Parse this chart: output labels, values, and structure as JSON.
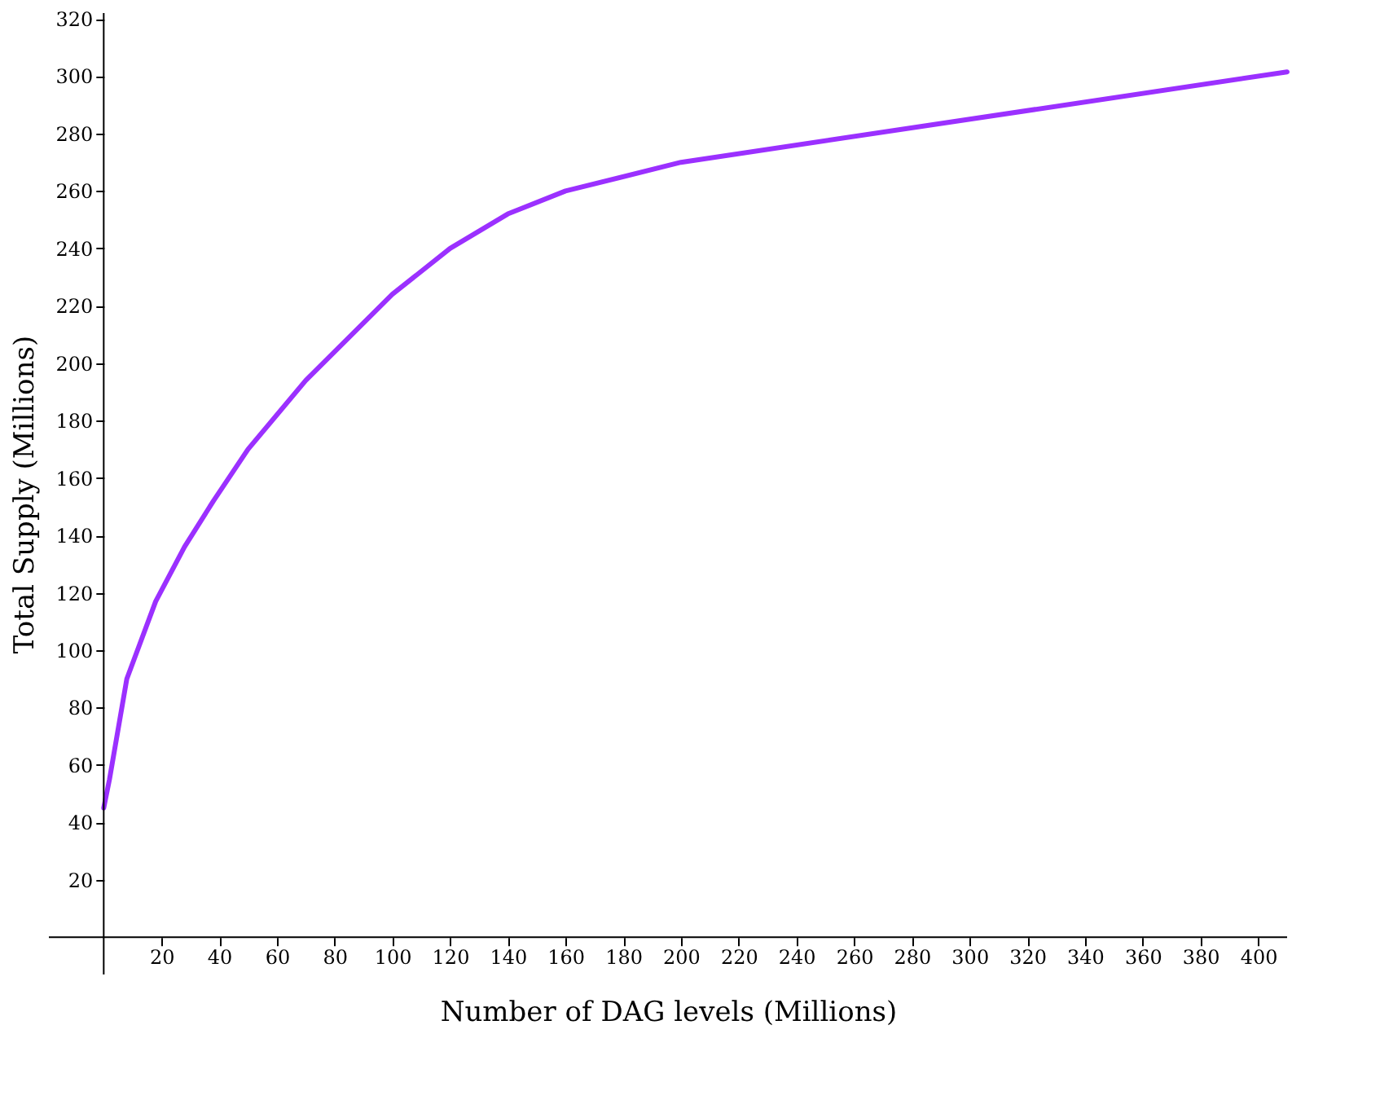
{
  "chart_data": {
    "type": "line",
    "xlabel": "Number of DAG levels (Millions)",
    "ylabel": "Total Supply (Millions)",
    "x": [
      0,
      2,
      8,
      18,
      28,
      38,
      50,
      70,
      100,
      120,
      140,
      160,
      200,
      410
    ],
    "series": [
      {
        "color": "#9b30ff",
        "values": [
          45,
          55,
          90,
          117,
          136,
          152,
          170,
          194,
          224,
          240,
          252,
          260,
          270,
          301.5
        ]
      }
    ],
    "xlim": [
      -19,
      410
    ],
    "ylim": [
      -13,
      322
    ],
    "xticks": [
      20,
      40,
      60,
      80,
      100,
      120,
      140,
      160,
      180,
      200,
      220,
      240,
      260,
      280,
      300,
      320,
      340,
      360,
      380,
      400
    ],
    "yticks": [
      20,
      40,
      60,
      80,
      100,
      120,
      140,
      160,
      180,
      200,
      220,
      240,
      260,
      280,
      300,
      320
    ],
    "grid": false,
    "marker": "none",
    "line_style": "solid"
  }
}
